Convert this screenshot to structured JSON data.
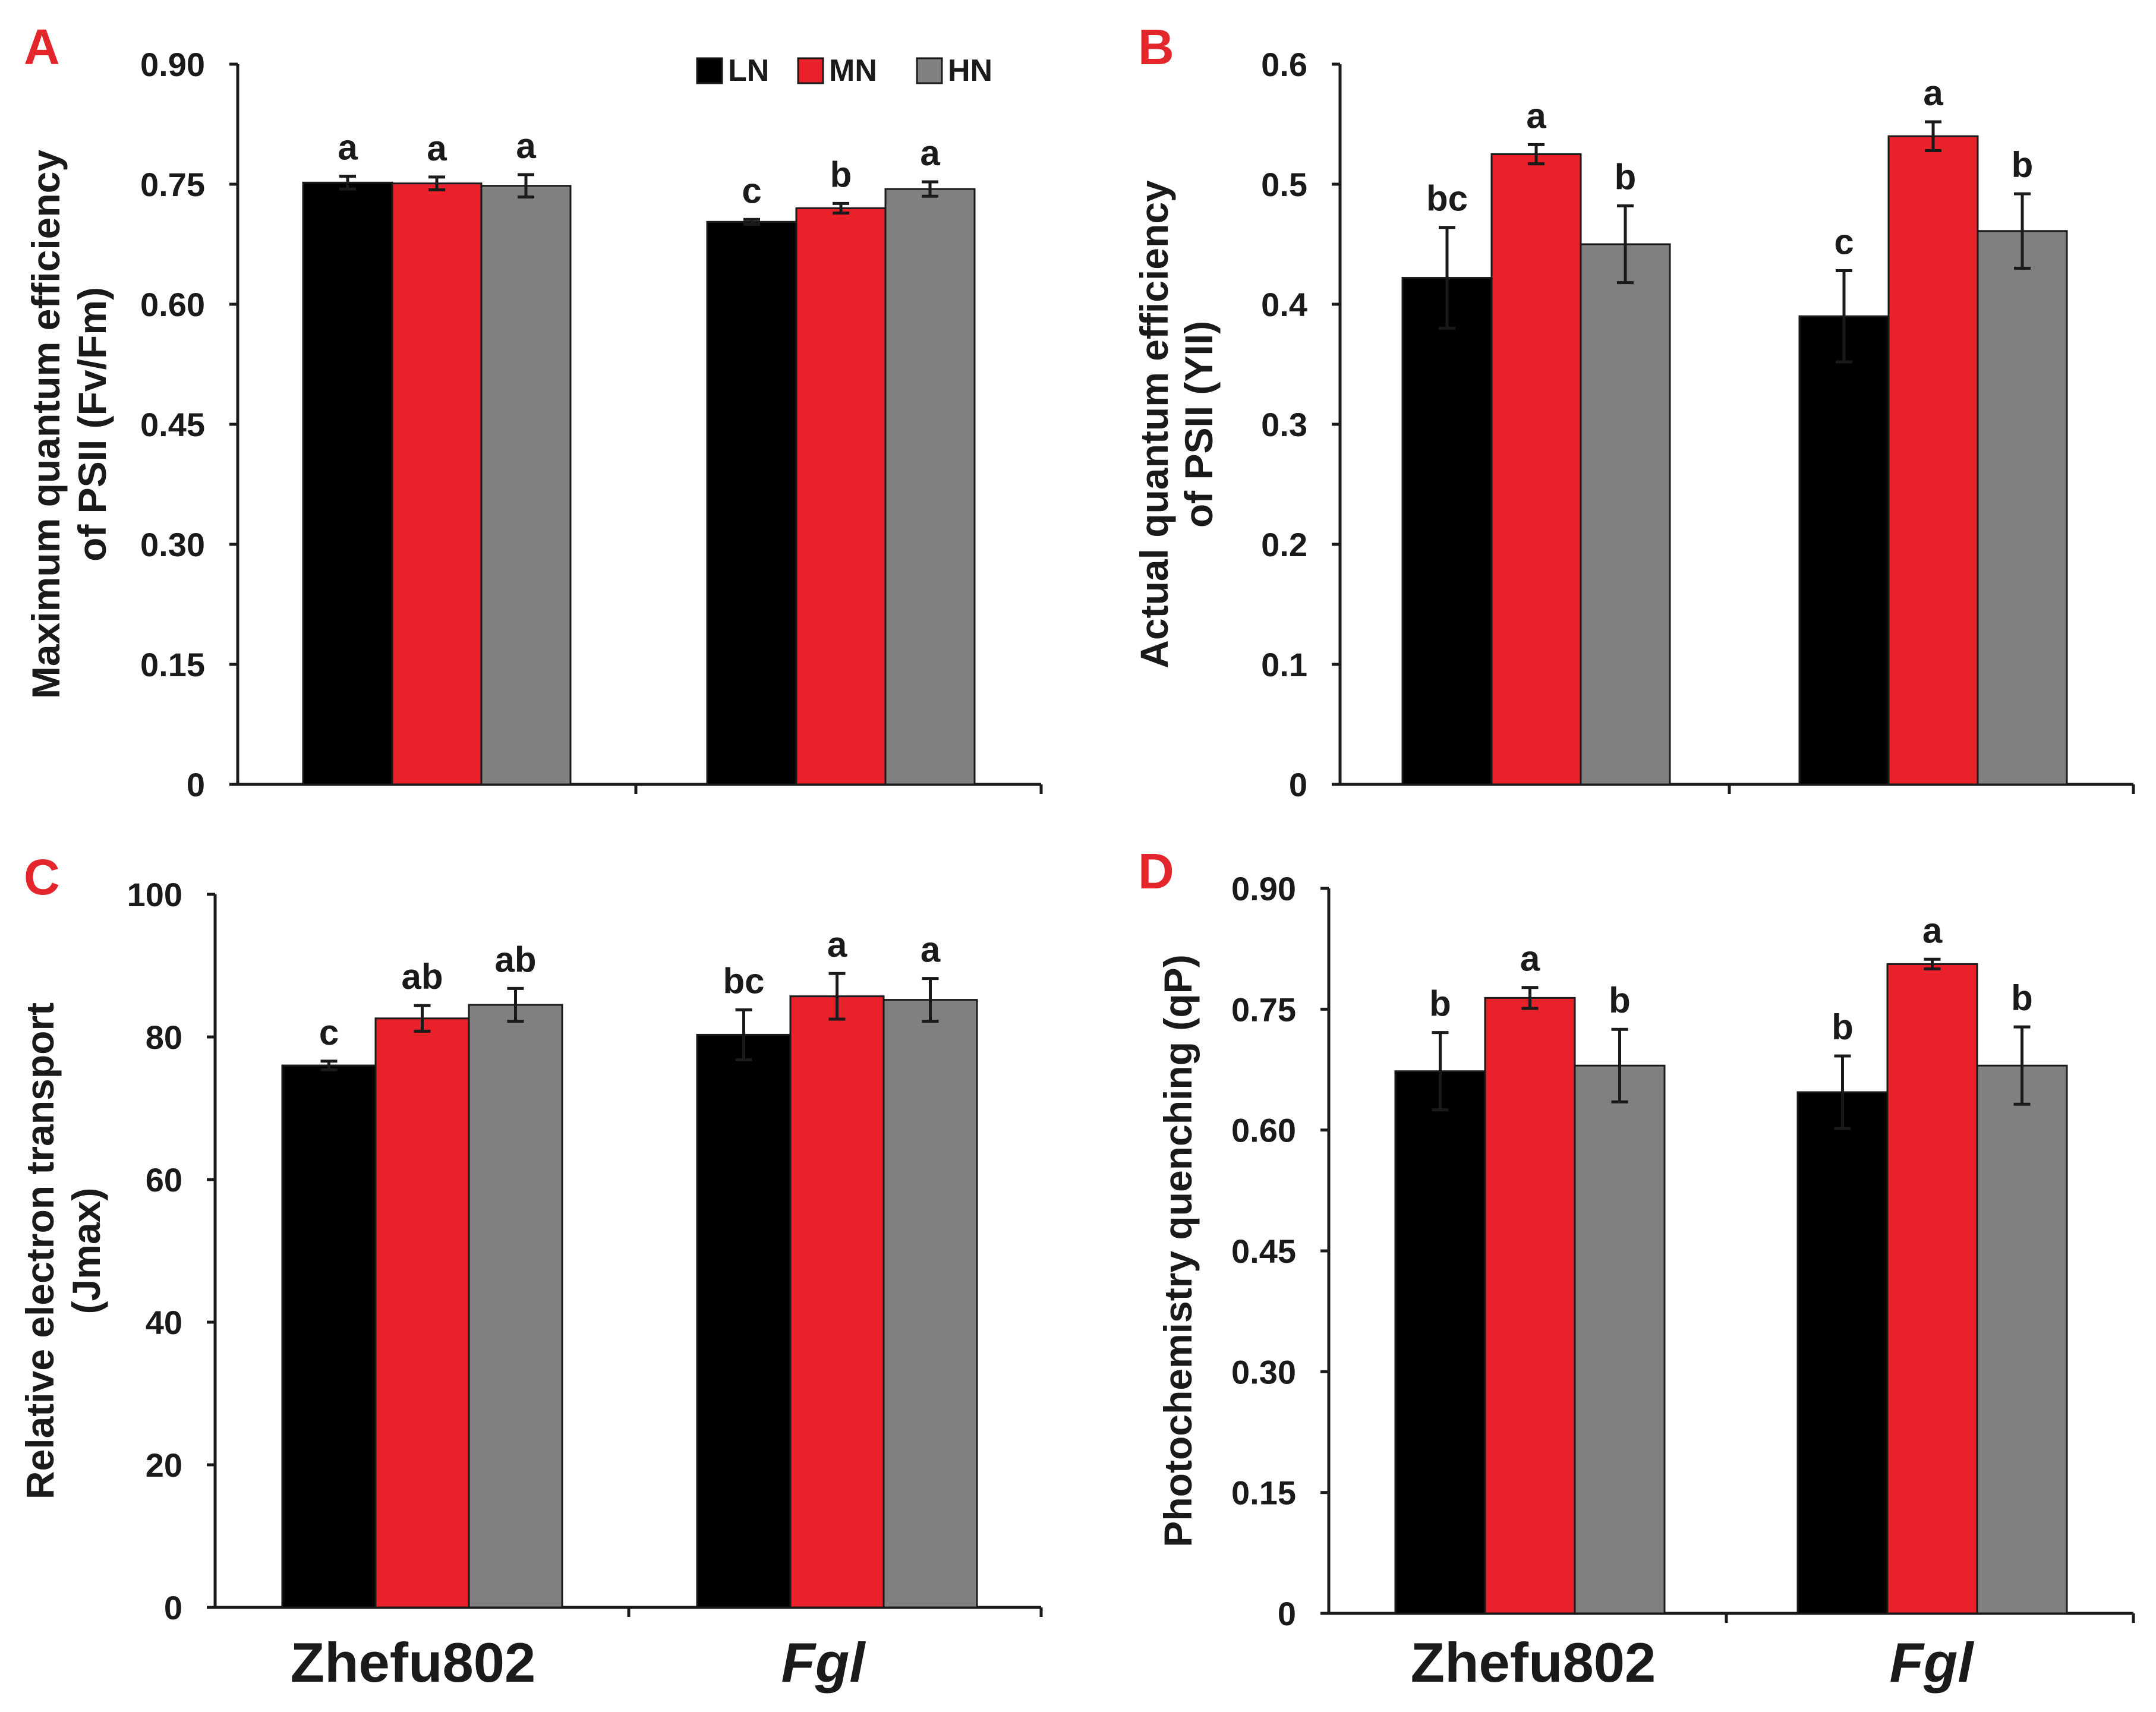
{
  "legend": [
    {
      "name": "LN",
      "color": "#000000"
    },
    {
      "name": "MN",
      "color": "#e8212a"
    },
    {
      "name": "HN",
      "color": "#808080"
    }
  ],
  "group_labels": [
    {
      "text": "Zhefu802",
      "italic": false
    },
    {
      "text": "Fgl",
      "italic": true
    }
  ],
  "chart_data": [
    {
      "panel": "A",
      "type": "bar",
      "categories": [
        "Zhefu802",
        "Fgl"
      ],
      "ylabel_lines": [
        "Maximum quantum efficiency",
        "of PSII (Fv/Fm)"
      ],
      "ylim": [
        0,
        0.9
      ],
      "yticks": [
        "0",
        "0.15",
        "0.30",
        "0.45",
        "0.60",
        "0.75",
        "0.90"
      ],
      "legend_position": "top-right",
      "series": [
        {
          "name": "LN",
          "values": [
            0.752,
            0.703
          ],
          "errors": [
            0.008,
            0.003
          ],
          "letters": [
            "a",
            "c"
          ]
        },
        {
          "name": "MN",
          "values": [
            0.751,
            0.72
          ],
          "errors": [
            0.008,
            0.006
          ],
          "letters": [
            "a",
            "b"
          ]
        },
        {
          "name": "HN",
          "values": [
            0.748,
            0.744
          ],
          "errors": [
            0.014,
            0.009
          ],
          "letters": [
            "a",
            "a"
          ]
        }
      ]
    },
    {
      "panel": "B",
      "type": "bar",
      "categories": [
        "Zhefu802",
        "Fgl"
      ],
      "ylabel_lines": [
        "Actual quantum efficiency",
        "of PSII (YII)"
      ],
      "ylim": [
        0,
        0.6
      ],
      "yticks": [
        "0",
        "0.1",
        "0.2",
        "0.3",
        "0.4",
        "0.5",
        "0.6"
      ],
      "series": [
        {
          "name": "LN",
          "values": [
            0.422,
            0.39
          ],
          "errors": [
            0.042,
            0.038
          ],
          "letters": [
            "bc",
            "c"
          ]
        },
        {
          "name": "MN",
          "values": [
            0.525,
            0.54
          ],
          "errors": [
            0.008,
            0.012
          ],
          "letters": [
            "a",
            "a"
          ]
        },
        {
          "name": "HN",
          "values": [
            0.45,
            0.461
          ],
          "errors": [
            0.032,
            0.031
          ],
          "letters": [
            "b",
            "b"
          ]
        }
      ]
    },
    {
      "panel": "C",
      "type": "bar",
      "categories": [
        "Zhefu802",
        "Fgl"
      ],
      "ylabel_lines": [
        "Relative electron transport",
        "(Jmax)"
      ],
      "ylim": [
        0,
        100
      ],
      "yticks": [
        "0",
        "20",
        "40",
        "60",
        "80",
        "100"
      ],
      "series": [
        {
          "name": "LN",
          "values": [
            76.0,
            80.3
          ],
          "errors": [
            0.6,
            3.5
          ],
          "letters": [
            "c",
            "bc"
          ]
        },
        {
          "name": "MN",
          "values": [
            82.6,
            85.7
          ],
          "errors": [
            1.8,
            3.2
          ],
          "letters": [
            "ab",
            "a"
          ]
        },
        {
          "name": "HN",
          "values": [
            84.5,
            85.2
          ],
          "errors": [
            2.3,
            3.0
          ],
          "letters": [
            "ab",
            "a"
          ]
        }
      ]
    },
    {
      "panel": "D",
      "type": "bar",
      "categories": [
        "Zhefu802",
        "Fgl"
      ],
      "ylabel_lines": [
        "Photochemistry quenching (qP)"
      ],
      "ylim": [
        0,
        0.9
      ],
      "yticks": [
        "0",
        "0.15",
        "0.30",
        "0.45",
        "0.60",
        "0.75",
        "0.90"
      ],
      "series": [
        {
          "name": "LN",
          "values": [
            0.673,
            0.647
          ],
          "errors": [
            0.048,
            0.045
          ],
          "letters": [
            "b",
            "b"
          ]
        },
        {
          "name": "MN",
          "values": [
            0.764,
            0.806
          ],
          "errors": [
            0.013,
            0.006
          ],
          "letters": [
            "a",
            "a"
          ]
        },
        {
          "name": "HN",
          "values": [
            0.68,
            0.68
          ],
          "errors": [
            0.045,
            0.048
          ],
          "letters": [
            "b",
            "b"
          ]
        }
      ]
    }
  ]
}
